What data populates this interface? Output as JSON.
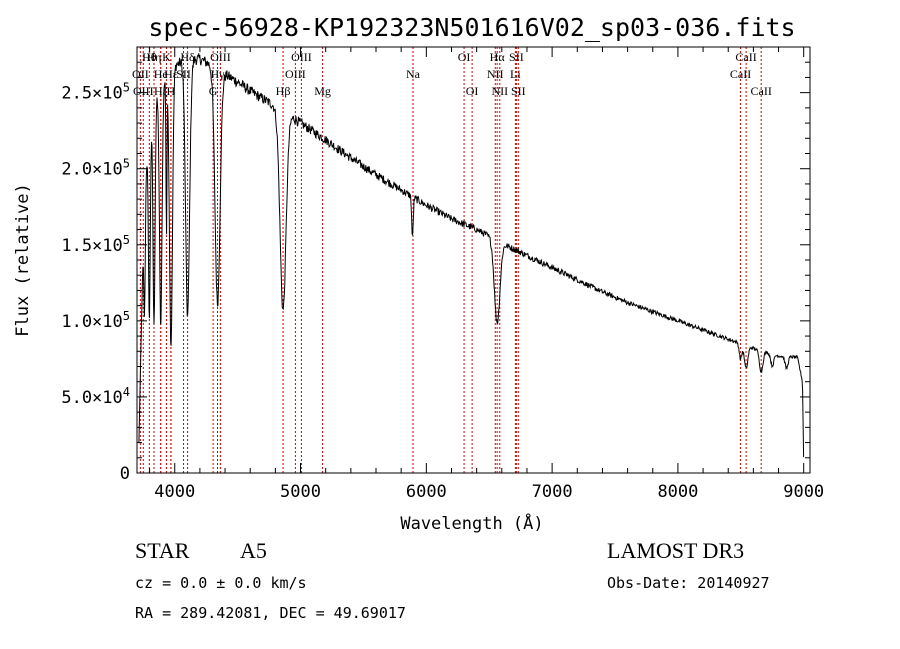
{
  "chart_data": {
    "type": "line",
    "title": "spec-56928-KP192323N501616V02_sp03-036.fits",
    "xlabel": "Wavelength (Å)",
    "ylabel": "Flux (relative)",
    "xlim": [
      3700,
      9050
    ],
    "ylim": [
      0,
      280000
    ],
    "x_ticks": [
      4000,
      5000,
      6000,
      7000,
      8000,
      9000
    ],
    "x_tick_labels": [
      "4000",
      "5000",
      "6000",
      "7000",
      "8000",
      "9000"
    ],
    "y_ticks": [
      0,
      50000,
      100000,
      150000,
      200000,
      250000
    ],
    "y_tick_labels": [
      {
        "mant": "0",
        "exp": ""
      },
      {
        "mant": "5.0×10",
        "exp": "4"
      },
      {
        "mant": "1.0×10",
        "exp": "5"
      },
      {
        "mant": "1.5×10",
        "exp": "5"
      },
      {
        "mant": "2.0×10",
        "exp": "5"
      },
      {
        "mant": "2.5×10",
        "exp": "5"
      }
    ],
    "line_color": "#000000",
    "marker_color": "#cc0000",
    "continuum": {
      "x": [
        3715,
        3760,
        3800,
        3850,
        3900,
        3950,
        4000,
        4100,
        4200,
        4300,
        4400,
        4500,
        4600,
        4700,
        4800,
        4900,
        5000,
        5200,
        5400,
        5600,
        5800,
        6000,
        6200,
        6400,
        6600,
        6800,
        7000,
        7200,
        7400,
        7600,
        7800,
        8000,
        8200,
        8400,
        8600,
        8800,
        8950,
        8990,
        9000
      ],
      "y": [
        20000,
        190000,
        225000,
        245000,
        255000,
        262000,
        268000,
        272000,
        272000,
        268000,
        262000,
        257000,
        251000,
        246000,
        241000,
        236000,
        230000,
        219000,
        207000,
        196000,
        186000,
        176000,
        167000,
        160000,
        151000,
        143000,
        135000,
        127000,
        119000,
        112000,
        106000,
        100000,
        94000,
        88000,
        82000,
        77000,
        76000,
        60000,
        5000
      ]
    },
    "absorption": [
      {
        "center": 3760,
        "width": 6,
        "depth": 0.45
      },
      {
        "center": 3798,
        "width": 7,
        "depth": 0.55
      },
      {
        "center": 3835,
        "width": 8,
        "depth": 0.6
      },
      {
        "center": 3889,
        "width": 10,
        "depth": 0.62
      },
      {
        "center": 3934,
        "width": 4,
        "depth": 0.4
      },
      {
        "center": 3970,
        "width": 12,
        "depth": 0.68
      },
      {
        "center": 4102,
        "width": 16,
        "depth": 0.62
      },
      {
        "center": 4340,
        "width": 20,
        "depth": 0.58
      },
      {
        "center": 4861,
        "width": 24,
        "depth": 0.55
      },
      {
        "center": 5890,
        "width": 6,
        "depth": 0.15
      },
      {
        "center": 6563,
        "width": 22,
        "depth": 0.35
      },
      {
        "center": 8498,
        "width": 10,
        "depth": 0.12
      },
      {
        "center": 8542,
        "width": 14,
        "depth": 0.18
      },
      {
        "center": 8662,
        "width": 14,
        "depth": 0.17
      },
      {
        "center": 8750,
        "width": 12,
        "depth": 0.1
      },
      {
        "center": 8863,
        "width": 12,
        "depth": 0.1
      }
    ],
    "noise_amp": 3500,
    "sample_step": 4,
    "spectral_lines": [
      {
        "label": "Hθ",
        "wavelength": 3798,
        "row": 1
      },
      {
        "label": "OII",
        "wavelength": 3727,
        "row": 2
      },
      {
        "label": "OIII",
        "wavelength": 3750,
        "row": 3
      },
      {
        "label": "Hη",
        "wavelength": 3835,
        "row": 1
      },
      {
        "label": "He",
        "wavelength": 3889,
        "row": 2
      },
      {
        "label": "Hζ",
        "wavelength": 3889,
        "row": 3
      },
      {
        "label": "K",
        "wavelength": 3934,
        "row": 1
      },
      {
        "label": "H",
        "wavelength": 3969,
        "row": 3
      },
      {
        "label": "Hε",
        "wavelength": 3970,
        "row": 2
      },
      {
        "label": "Hδ",
        "wavelength": 4102,
        "row": 1
      },
      {
        "label": "SII",
        "wavelength": 4070,
        "row": 2
      },
      {
        "label": "G",
        "wavelength": 4305,
        "row": 3
      },
      {
        "label": "OIII",
        "wavelength": 4363,
        "row": 1
      },
      {
        "label": "Hγ",
        "wavelength": 4340,
        "row": 2
      },
      {
        "label": "Hβ",
        "wavelength": 4861,
        "row": 3
      },
      {
        "label": "OIII",
        "wavelength": 4959,
        "row": 2
      },
      {
        "label": "OIII",
        "wavelength": 5007,
        "row": 1
      },
      {
        "label": "Mg",
        "wavelength": 5175,
        "row": 3
      },
      {
        "label": "Na",
        "wavelength": 5894,
        "row": 2
      },
      {
        "label": "OI",
        "wavelength": 6300,
        "row": 1
      },
      {
        "label": "OI",
        "wavelength": 6364,
        "row": 3
      },
      {
        "label": "Hα",
        "wavelength": 6563,
        "row": 1
      },
      {
        "label": "NII",
        "wavelength": 6548,
        "row": 2
      },
      {
        "label": "NII",
        "wavelength": 6584,
        "row": 3
      },
      {
        "label": "SII",
        "wavelength": 6716,
        "row": 1
      },
      {
        "label": "Li",
        "wavelength": 6708,
        "row": 2
      },
      {
        "label": "SII",
        "wavelength": 6731,
        "row": 3
      },
      {
        "label": "CaII",
        "wavelength": 8498,
        "row": 2
      },
      {
        "label": "CaII",
        "wavelength": 8542,
        "row": 1
      },
      {
        "label": "CaII",
        "wavelength": 8662,
        "row": 3
      }
    ]
  },
  "info": {
    "class": "STAR",
    "subclass": "A5",
    "survey": "LAMOST DR3",
    "cz": "cz = 0.0 ± 0.0 km/s",
    "obs_date": "Obs-Date: 20140927",
    "radec": "RA = 289.42081, DEC =  49.69017"
  }
}
